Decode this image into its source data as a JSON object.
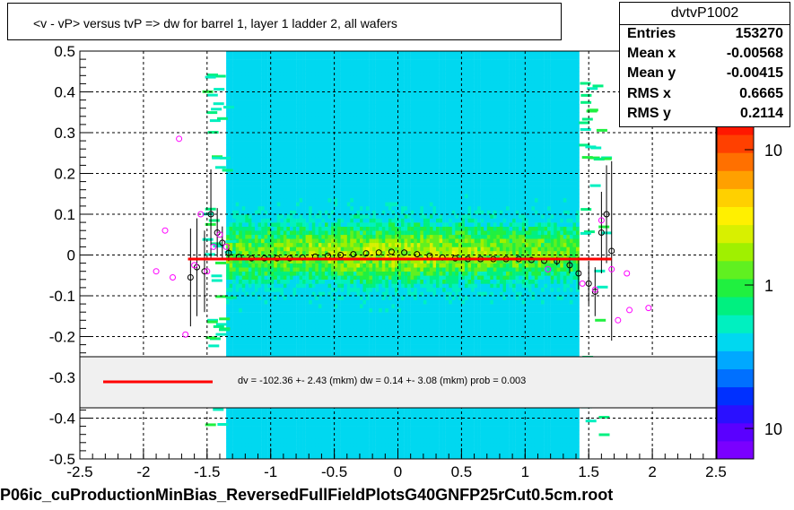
{
  "title": "<v - vP>       versus  tvP =>  dw for barrel 1, layer 1 ladder 2, all wafers",
  "stats": {
    "name": "dvtvP1002",
    "rows": [
      {
        "key": "Entries",
        "value": "153270"
      },
      {
        "key": "Mean x",
        "value": "-0.00568"
      },
      {
        "key": "Mean y",
        "value": "-0.00415"
      },
      {
        "key": "RMS x",
        "value": "0.6665"
      },
      {
        "key": "RMS y",
        "value": "0.2114"
      }
    ]
  },
  "fit_text": "dv = -102.36 +-  2.43 (mkm) dw =    0.14 +-  3.08 (mkm) prob = 0.003",
  "footer": "P06ic_cuProductionMinBias_ReversedFullFieldPlotsG40GNFP25rCut0.5cm.root",
  "colors": {
    "fit_line": "#ff0000",
    "profile_black": "#000000",
    "profile_magenta": "#ff00ff"
  },
  "chart_data": {
    "type": "heatmap",
    "xlim": [
      -2.5,
      2.5
    ],
    "ylim": [
      -0.5,
      0.5
    ],
    "x_ticks": [
      "-2.5",
      "-2",
      "-1.5",
      "-1",
      "-0.5",
      "0",
      "0.5",
      "1",
      "1.5",
      "2",
      "2.5"
    ],
    "y_ticks": [
      "-0.5",
      "-0.4",
      "-0.3",
      "-0.2",
      "-0.1",
      "0",
      "0.1",
      "0.2",
      "0.3",
      "0.4",
      "0.5"
    ],
    "z_ticks": [
      "10",
      "1",
      "10"
    ],
    "z_scale": "log",
    "grid": true,
    "fit_line": {
      "x": [
        -1.65,
        1.68
      ],
      "y": [
        -0.01,
        -0.01
      ]
    },
    "profile_black": [
      {
        "x": -1.63,
        "y": -0.055,
        "err": 0.12
      },
      {
        "x": -1.58,
        "y": -0.03,
        "err": 0.12
      },
      {
        "x": -1.52,
        "y": -0.04,
        "err": 0.1
      },
      {
        "x": -1.47,
        "y": 0.1,
        "err": 0.11
      },
      {
        "x": -1.42,
        "y": 0.055,
        "err": 0.06
      },
      {
        "x": -1.38,
        "y": 0.03,
        "err": 0.04
      },
      {
        "x": -1.33,
        "y": 0.005,
        "err": 0.02
      },
      {
        "x": -1.25,
        "y": -0.005,
        "err": 0.0
      },
      {
        "x": -1.15,
        "y": -0.008,
        "err": 0.0
      },
      {
        "x": -1.05,
        "y": -0.008,
        "err": 0.0
      },
      {
        "x": -0.95,
        "y": -0.008,
        "err": 0.0
      },
      {
        "x": -0.85,
        "y": -0.008,
        "err": 0.0
      },
      {
        "x": -0.75,
        "y": -0.006,
        "err": 0.0
      },
      {
        "x": -0.65,
        "y": -0.004,
        "err": 0.0
      },
      {
        "x": -0.55,
        "y": -0.002,
        "err": 0.0
      },
      {
        "x": -0.45,
        "y": 0.0,
        "err": 0.0
      },
      {
        "x": -0.35,
        "y": 0.002,
        "err": 0.0
      },
      {
        "x": -0.25,
        "y": 0.004,
        "err": 0.0
      },
      {
        "x": -0.15,
        "y": 0.006,
        "err": 0.0
      },
      {
        "x": -0.05,
        "y": 0.008,
        "err": 0.0
      },
      {
        "x": 0.05,
        "y": 0.006,
        "err": 0.0
      },
      {
        "x": 0.15,
        "y": 0.002,
        "err": 0.0
      },
      {
        "x": 0.25,
        "y": -0.002,
        "err": 0.0
      },
      {
        "x": 0.35,
        "y": -0.006,
        "err": 0.0
      },
      {
        "x": 0.45,
        "y": -0.008,
        "err": 0.0
      },
      {
        "x": 0.55,
        "y": -0.01,
        "err": 0.0
      },
      {
        "x": 0.65,
        "y": -0.01,
        "err": 0.0
      },
      {
        "x": 0.75,
        "y": -0.01,
        "err": 0.0
      },
      {
        "x": 0.85,
        "y": -0.01,
        "err": 0.0
      },
      {
        "x": 0.95,
        "y": -0.01,
        "err": 0.0
      },
      {
        "x": 1.05,
        "y": -0.012,
        "err": 0.0
      },
      {
        "x": 1.15,
        "y": -0.014,
        "err": 0.0
      },
      {
        "x": 1.25,
        "y": -0.015,
        "err": 0.01
      },
      {
        "x": 1.35,
        "y": -0.025,
        "err": 0.02
      },
      {
        "x": 1.42,
        "y": -0.045,
        "err": 0.04
      },
      {
        "x": 1.5,
        "y": -0.07,
        "err": 0.05
      },
      {
        "x": 1.55,
        "y": -0.09,
        "err": 0.06
      },
      {
        "x": 1.6,
        "y": 0.055,
        "err": 0.1
      },
      {
        "x": 1.64,
        "y": 0.1,
        "err": 0.12
      },
      {
        "x": 1.68,
        "y": 0.01,
        "err": 0.22
      }
    ],
    "profile_magenta": [
      {
        "x": -1.9,
        "y": -0.04
      },
      {
        "x": -1.83,
        "y": 0.06
      },
      {
        "x": -1.77,
        "y": -0.055
      },
      {
        "x": -1.72,
        "y": 0.285
      },
      {
        "x": -1.67,
        "y": -0.195
      },
      {
        "x": -1.6,
        "y": -0.025
      },
      {
        "x": -1.55,
        "y": 0.1
      },
      {
        "x": -1.5,
        "y": -0.04
      },
      {
        "x": -1.45,
        "y": 0.02
      },
      {
        "x": -1.4,
        "y": 0.05
      },
      {
        "x": -1.35,
        "y": 0.02
      },
      {
        "x": 1.18,
        "y": -0.035
      },
      {
        "x": 1.45,
        "y": -0.07
      },
      {
        "x": 1.55,
        "y": -0.085
      },
      {
        "x": 1.6,
        "y": 0.085
      },
      {
        "x": 1.68,
        "y": -0.035
      },
      {
        "x": 1.73,
        "y": -0.16
      },
      {
        "x": 1.8,
        "y": -0.045
      },
      {
        "x": 1.82,
        "y": -0.135
      },
      {
        "x": 1.97,
        "y": -0.13
      }
    ]
  }
}
